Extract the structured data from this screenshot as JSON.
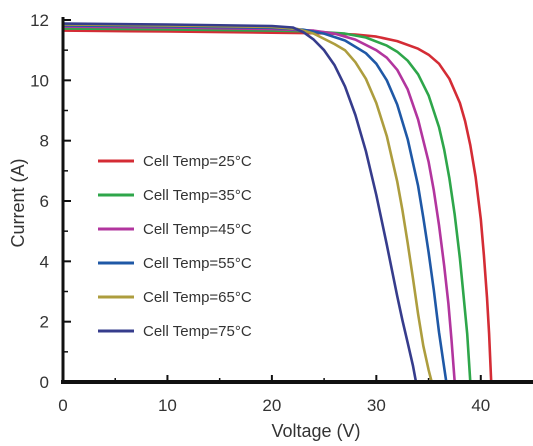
{
  "chart_data": {
    "type": "line",
    "title": "",
    "xlabel": "Voltage (V)",
    "ylabel": "Current (A)",
    "xlim": [
      0,
      45
    ],
    "ylim": [
      0,
      12
    ],
    "xticks": [
      0,
      10,
      20,
      30,
      40
    ],
    "yticks": [
      0,
      2,
      4,
      6,
      8,
      10,
      12
    ],
    "tick_labels_x": [
      "0",
      "10",
      "20",
      "30",
      "40"
    ],
    "tick_labels_y": [
      "0",
      "2",
      "4",
      "6",
      "8",
      "10",
      "12"
    ],
    "grid": false,
    "legend_position": "left-middle",
    "series": [
      {
        "name": "Cell Temp=25°C",
        "color": "#d42c35",
        "points": [
          [
            0,
            11.65
          ],
          [
            10,
            11.62
          ],
          [
            20,
            11.58
          ],
          [
            25,
            11.56
          ],
          [
            28,
            11.52
          ],
          [
            30,
            11.45
          ],
          [
            32,
            11.3
          ],
          [
            34,
            11.05
          ],
          [
            35,
            10.85
          ],
          [
            36,
            10.55
          ],
          [
            37,
            10.05
          ],
          [
            38,
            9.25
          ],
          [
            38.5,
            8.65
          ],
          [
            39,
            7.85
          ],
          [
            39.5,
            6.8
          ],
          [
            40,
            5.4
          ],
          [
            40.3,
            4.2
          ],
          [
            40.6,
            2.8
          ],
          [
            40.8,
            1.6
          ],
          [
            41,
            0
          ]
        ]
      },
      {
        "name": "Cell Temp=35°C",
        "color": "#2ea64a",
        "points": [
          [
            0,
            11.72
          ],
          [
            10,
            11.69
          ],
          [
            20,
            11.65
          ],
          [
            24,
            11.62
          ],
          [
            27,
            11.55
          ],
          [
            29,
            11.42
          ],
          [
            31,
            11.15
          ],
          [
            32,
            10.95
          ],
          [
            33,
            10.65
          ],
          [
            34,
            10.2
          ],
          [
            35,
            9.5
          ],
          [
            36,
            8.45
          ],
          [
            36.5,
            7.7
          ],
          [
            37,
            6.75
          ],
          [
            37.5,
            5.55
          ],
          [
            38,
            4.1
          ],
          [
            38.3,
            3.05
          ],
          [
            38.7,
            1.6
          ],
          [
            39,
            0
          ]
        ]
      },
      {
        "name": "Cell Temp=45°C",
        "color": "#b2359e",
        "points": [
          [
            0,
            11.78
          ],
          [
            10,
            11.75
          ],
          [
            20,
            11.7
          ],
          [
            24,
            11.65
          ],
          [
            26,
            11.55
          ],
          [
            28,
            11.35
          ],
          [
            30,
            11.0
          ],
          [
            31,
            10.75
          ],
          [
            32,
            10.35
          ],
          [
            33,
            9.7
          ],
          [
            34,
            8.7
          ],
          [
            35,
            7.3
          ],
          [
            35.5,
            6.35
          ],
          [
            36,
            5.2
          ],
          [
            36.5,
            3.85
          ],
          [
            36.9,
            2.6
          ],
          [
            37.2,
            1.4
          ],
          [
            37.5,
            0
          ]
        ]
      },
      {
        "name": "Cell Temp=55°C",
        "color": "#1f58a6",
        "points": [
          [
            0,
            11.82
          ],
          [
            10,
            11.79
          ],
          [
            20,
            11.74
          ],
          [
            23,
            11.68
          ],
          [
            25,
            11.55
          ],
          [
            27,
            11.32
          ],
          [
            29,
            10.9
          ],
          [
            30,
            10.55
          ],
          [
            31,
            10.0
          ],
          [
            32,
            9.2
          ],
          [
            33,
            8.05
          ],
          [
            34,
            6.5
          ],
          [
            34.5,
            5.45
          ],
          [
            35,
            4.3
          ],
          [
            35.5,
            3.05
          ],
          [
            36,
            1.65
          ],
          [
            36.4,
            0.7
          ],
          [
            36.7,
            0
          ]
        ]
      },
      {
        "name": "Cell Temp=65°C",
        "color": "#ad9d3e",
        "points": [
          [
            0,
            11.85
          ],
          [
            10,
            11.82
          ],
          [
            20,
            11.77
          ],
          [
            22.5,
            11.7
          ],
          [
            24,
            11.55
          ],
          [
            26,
            11.2
          ],
          [
            27,
            11.0
          ],
          [
            28,
            10.6
          ],
          [
            29,
            10.05
          ],
          [
            30,
            9.25
          ],
          [
            31,
            8.15
          ],
          [
            32,
            6.65
          ],
          [
            32.5,
            5.7
          ],
          [
            33,
            4.6
          ],
          [
            33.5,
            3.45
          ],
          [
            34,
            2.25
          ],
          [
            34.5,
            1.2
          ],
          [
            35,
            0.4
          ],
          [
            35.3,
            0
          ]
        ]
      },
      {
        "name": "Cell Temp=75°C",
        "color": "#363c8c",
        "points": [
          [
            0,
            11.88
          ],
          [
            10,
            11.85
          ],
          [
            20,
            11.8
          ],
          [
            22,
            11.75
          ],
          [
            23,
            11.6
          ],
          [
            24,
            11.35
          ],
          [
            25,
            11.0
          ],
          [
            26,
            10.5
          ],
          [
            27,
            9.8
          ],
          [
            28,
            8.85
          ],
          [
            29,
            7.65
          ],
          [
            30,
            6.2
          ],
          [
            31,
            4.55
          ],
          [
            31.5,
            3.7
          ],
          [
            32,
            2.85
          ],
          [
            32.5,
            2.05
          ],
          [
            33,
            1.3
          ],
          [
            33.5,
            0.55
          ],
          [
            33.8,
            0
          ]
        ]
      }
    ]
  }
}
